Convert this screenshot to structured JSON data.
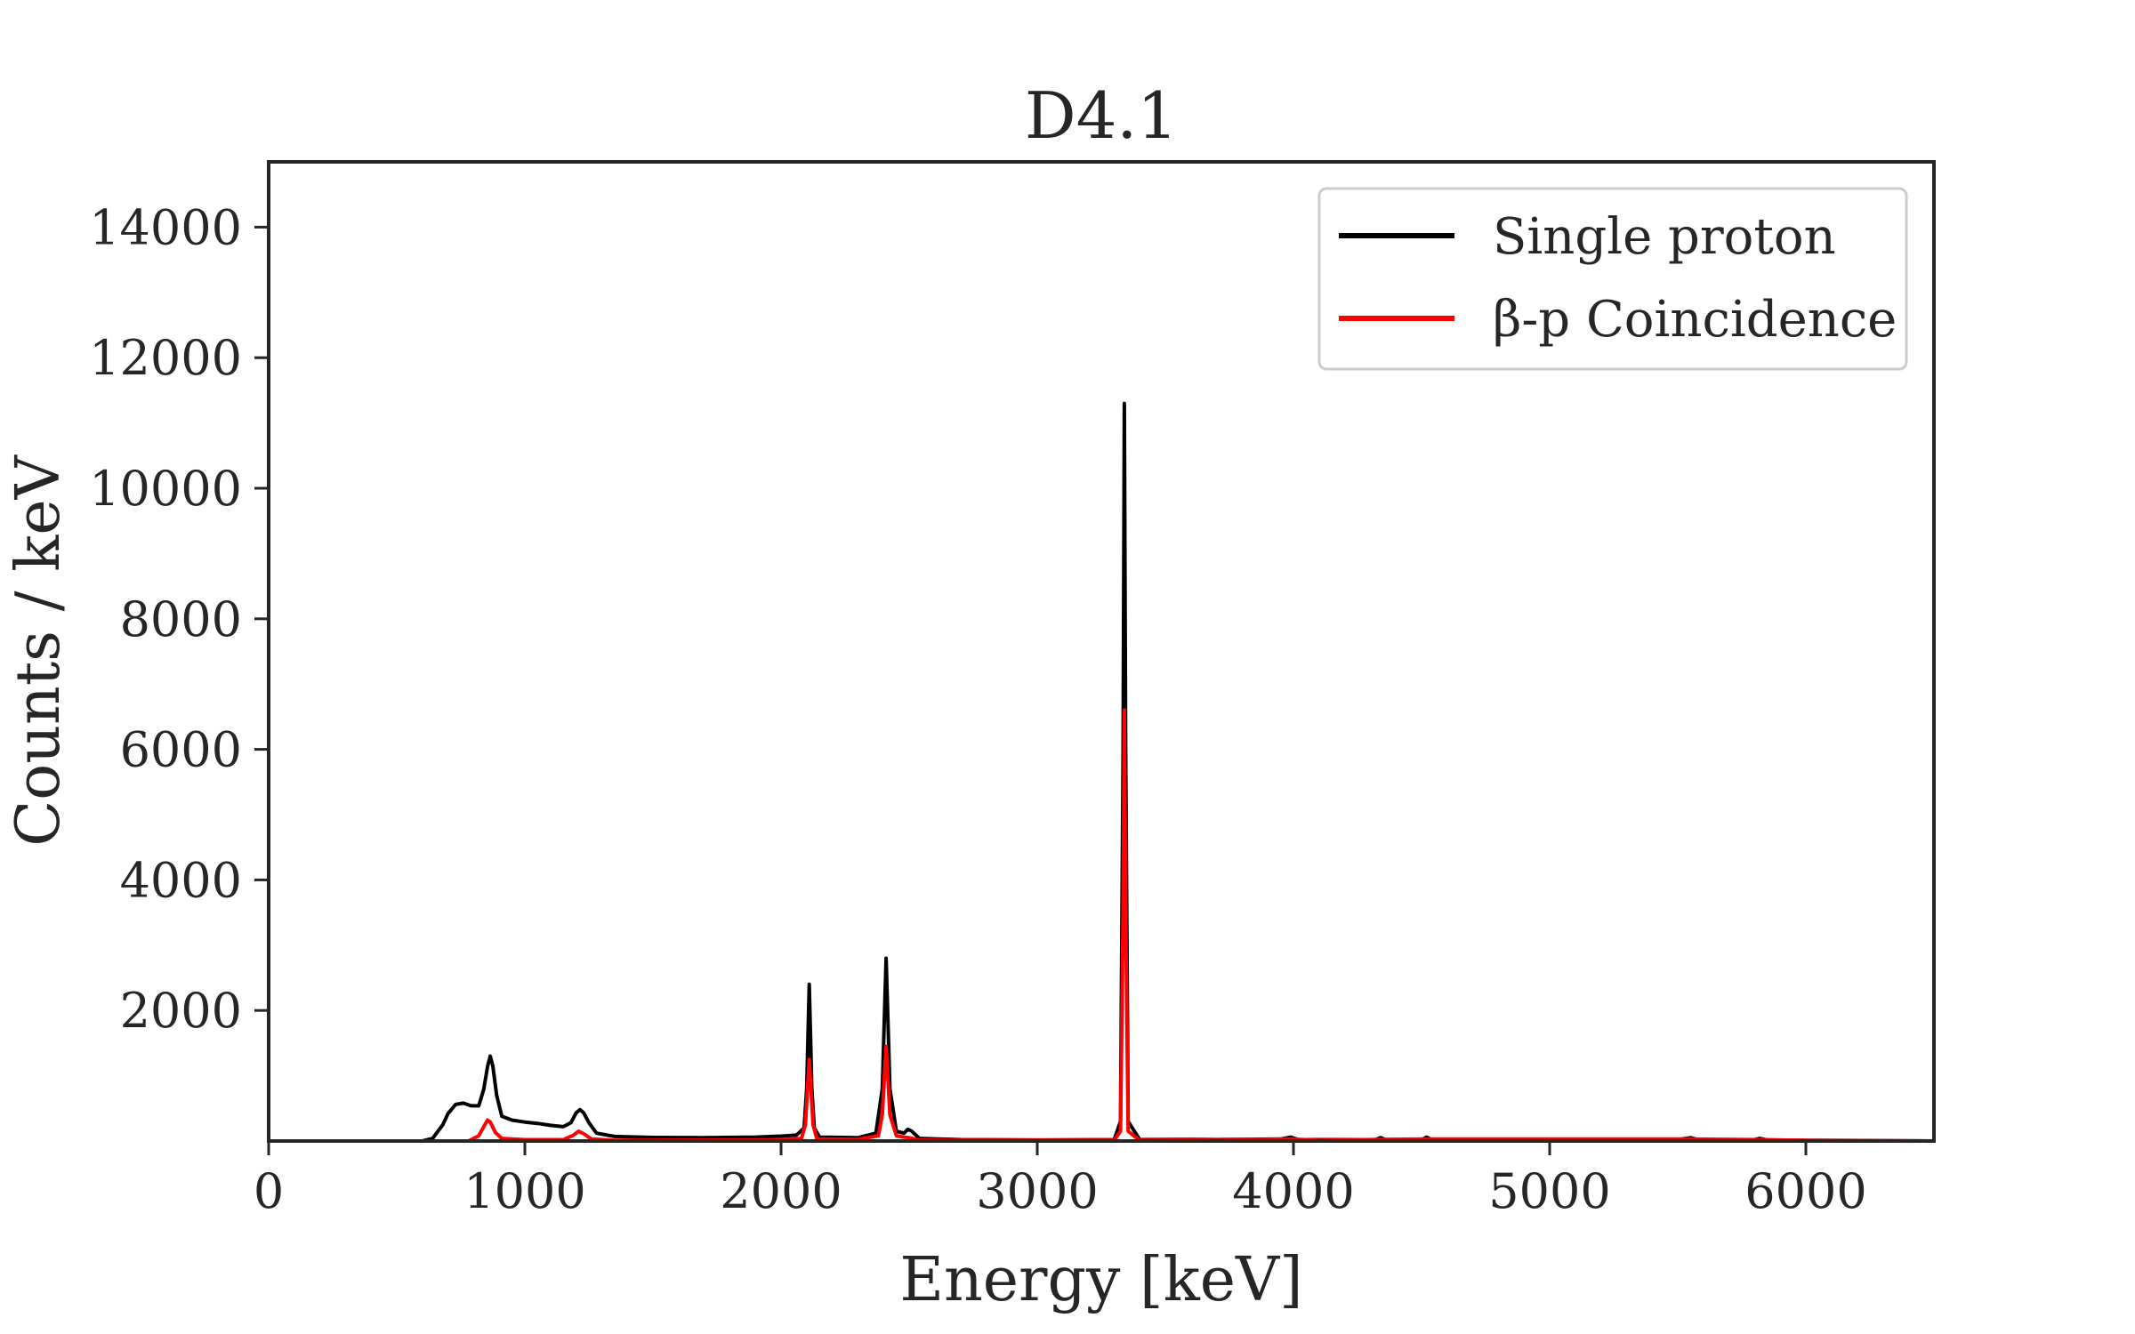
{
  "chart_data": {
    "type": "line",
    "title": "D4.1",
    "xlabel": "Energy [keV]",
    "ylabel": "Counts / keV",
    "xlim": [
      0,
      6500
    ],
    "ylim": [
      0,
      15000
    ],
    "x_ticks": [
      0,
      1000,
      2000,
      3000,
      4000,
      5000,
      6000
    ],
    "y_ticks": [
      2000,
      4000,
      6000,
      8000,
      10000,
      12000,
      14000
    ],
    "grid": false,
    "legend_position": "top-right",
    "series": [
      {
        "name": "Single proton",
        "color": "#000000",
        "points": [
          [
            0,
            0
          ],
          [
            600,
            0
          ],
          [
            640,
            40
          ],
          [
            680,
            250
          ],
          [
            700,
            420
          ],
          [
            730,
            560
          ],
          [
            760,
            580
          ],
          [
            790,
            540
          ],
          [
            820,
            540
          ],
          [
            840,
            800
          ],
          [
            855,
            1150
          ],
          [
            865,
            1300
          ],
          [
            875,
            1150
          ],
          [
            890,
            700
          ],
          [
            910,
            380
          ],
          [
            950,
            320
          ],
          [
            1000,
            290
          ],
          [
            1050,
            270
          ],
          [
            1100,
            240
          ],
          [
            1150,
            220
          ],
          [
            1180,
            280
          ],
          [
            1200,
            430
          ],
          [
            1215,
            480
          ],
          [
            1230,
            430
          ],
          [
            1250,
            280
          ],
          [
            1280,
            120
          ],
          [
            1350,
            70
          ],
          [
            1500,
            55
          ],
          [
            1700,
            50
          ],
          [
            1900,
            60
          ],
          [
            2000,
            75
          ],
          [
            2060,
            90
          ],
          [
            2090,
            200
          ],
          [
            2100,
            800
          ],
          [
            2110,
            2400
          ],
          [
            2120,
            800
          ],
          [
            2130,
            200
          ],
          [
            2150,
            60
          ],
          [
            2300,
            50
          ],
          [
            2370,
            120
          ],
          [
            2395,
            800
          ],
          [
            2410,
            2800
          ],
          [
            2425,
            800
          ],
          [
            2450,
            150
          ],
          [
            2480,
            120
          ],
          [
            2495,
            180
          ],
          [
            2510,
            150
          ],
          [
            2540,
            40
          ],
          [
            2700,
            20
          ],
          [
            3000,
            15
          ],
          [
            3300,
            20
          ],
          [
            3325,
            300
          ],
          [
            3335,
            6000
          ],
          [
            3340,
            11300
          ],
          [
            3345,
            6000
          ],
          [
            3355,
            300
          ],
          [
            3400,
            20
          ],
          [
            3600,
            25
          ],
          [
            3700,
            20
          ],
          [
            3950,
            30
          ],
          [
            3990,
            60
          ],
          [
            4020,
            20
          ],
          [
            4320,
            20
          ],
          [
            4340,
            50
          ],
          [
            4360,
            20
          ],
          [
            4500,
            20
          ],
          [
            4520,
            60
          ],
          [
            4540,
            20
          ],
          [
            5000,
            15
          ],
          [
            5500,
            20
          ],
          [
            5550,
            50
          ],
          [
            5580,
            20
          ],
          [
            5800,
            20
          ],
          [
            5820,
            40
          ],
          [
            5850,
            15
          ],
          [
            6050,
            10
          ],
          [
            6500,
            0
          ]
        ]
      },
      {
        "name": "β-p Coincidence",
        "color": "#ff0000",
        "points": [
          [
            0,
            0
          ],
          [
            780,
            0
          ],
          [
            820,
            80
          ],
          [
            845,
            260
          ],
          [
            855,
            320
          ],
          [
            865,
            290
          ],
          [
            885,
            130
          ],
          [
            910,
            40
          ],
          [
            1000,
            20
          ],
          [
            1150,
            20
          ],
          [
            1190,
            90
          ],
          [
            1210,
            150
          ],
          [
            1230,
            110
          ],
          [
            1260,
            30
          ],
          [
            1350,
            10
          ],
          [
            1900,
            15
          ],
          [
            2000,
            20
          ],
          [
            2080,
            40
          ],
          [
            2095,
            250
          ],
          [
            2110,
            1250
          ],
          [
            2125,
            250
          ],
          [
            2140,
            30
          ],
          [
            2300,
            25
          ],
          [
            2380,
            80
          ],
          [
            2395,
            400
          ],
          [
            2410,
            1450
          ],
          [
            2425,
            400
          ],
          [
            2450,
            80
          ],
          [
            2480,
            60
          ],
          [
            2500,
            50
          ],
          [
            2540,
            15
          ],
          [
            2700,
            10
          ],
          [
            3300,
            10
          ],
          [
            3325,
            150
          ],
          [
            3335,
            3500
          ],
          [
            3340,
            6600
          ],
          [
            3345,
            3500
          ],
          [
            3355,
            150
          ],
          [
            3400,
            10
          ],
          [
            3600,
            15
          ],
          [
            3700,
            10
          ],
          [
            3990,
            30
          ],
          [
            4100,
            10
          ],
          [
            4340,
            25
          ],
          [
            4520,
            30
          ],
          [
            5550,
            30
          ],
          [
            5820,
            20
          ],
          [
            6050,
            5
          ],
          [
            6500,
            0
          ]
        ]
      }
    ]
  }
}
